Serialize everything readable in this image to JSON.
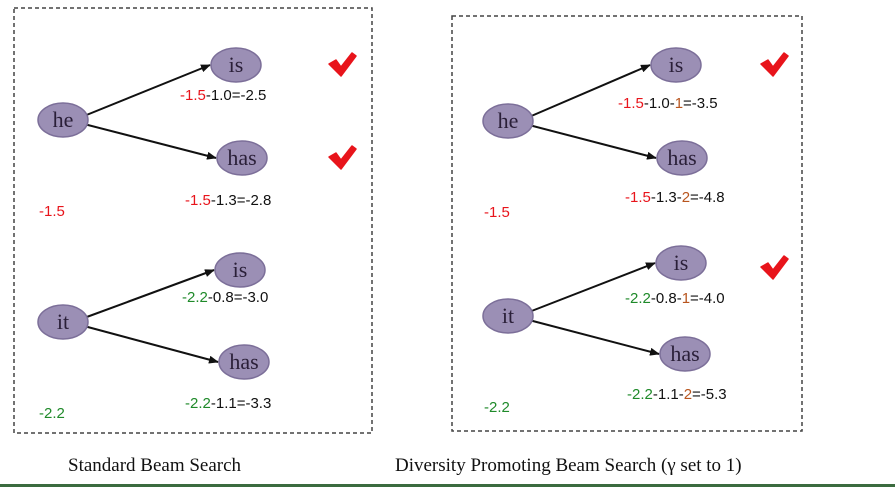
{
  "colors": {
    "node_fill": "#9b8fb5",
    "node_stroke": "#7c6f99",
    "red": "#e8141b",
    "green": "#1f8a2a",
    "brown": "#b8551e",
    "black": "#111111"
  },
  "panels": [
    {
      "caption": "Standard Beam Search",
      "groups": [
        {
          "root": {
            "label": "he",
            "score": [
              {
                "text": "-1.5",
                "color": "red"
              }
            ]
          },
          "children": [
            {
              "label": "is",
              "checked": true,
              "score": [
                {
                  "text": "-1.5",
                  "color": "red"
                },
                {
                  "text": "-1.0=-2.5",
                  "color": "black"
                }
              ]
            },
            {
              "label": "has",
              "checked": true,
              "score": [
                {
                  "text": "-1.5",
                  "color": "red"
                },
                {
                  "text": "-1.3=-2.8",
                  "color": "black"
                }
              ]
            }
          ]
        },
        {
          "root": {
            "label": "it",
            "score": [
              {
                "text": "-2.2",
                "color": "green"
              }
            ]
          },
          "children": [
            {
              "label": "is",
              "checked": false,
              "score": [
                {
                  "text": "-2.2",
                  "color": "green"
                },
                {
                  "text": "-0.8=-3.0",
                  "color": "black"
                }
              ]
            },
            {
              "label": "has",
              "checked": false,
              "score": [
                {
                  "text": "-2.2",
                  "color": "green"
                },
                {
                  "text": "-1.1=-3.3",
                  "color": "black"
                }
              ]
            }
          ]
        }
      ]
    },
    {
      "caption": "Diversity Promoting Beam Search (γ set to 1)",
      "groups": [
        {
          "root": {
            "label": "he",
            "score": [
              {
                "text": "-1.5",
                "color": "red"
              }
            ]
          },
          "children": [
            {
              "label": "is",
              "checked": true,
              "score": [
                {
                  "text": "-1.5",
                  "color": "red"
                },
                {
                  "text": "-1.0-",
                  "color": "black"
                },
                {
                  "text": "1",
                  "color": "brown"
                },
                {
                  "text": "=-3.5",
                  "color": "black"
                }
              ]
            },
            {
              "label": "has",
              "checked": false,
              "score": [
                {
                  "text": "-1.5",
                  "color": "red"
                },
                {
                  "text": "-1.3-",
                  "color": "black"
                },
                {
                  "text": "2",
                  "color": "brown"
                },
                {
                  "text": "=-4.8",
                  "color": "black"
                }
              ]
            }
          ]
        },
        {
          "root": {
            "label": "it",
            "score": [
              {
                "text": "-2.2",
                "color": "green"
              }
            ]
          },
          "children": [
            {
              "label": "is",
              "checked": true,
              "score": [
                {
                  "text": "-2.2",
                  "color": "green"
                },
                {
                  "text": "-0.8-",
                  "color": "black"
                },
                {
                  "text": "1",
                  "color": "brown"
                },
                {
                  "text": "=-4.0",
                  "color": "black"
                }
              ]
            },
            {
              "label": "has",
              "checked": false,
              "score": [
                {
                  "text": "-2.2",
                  "color": "green"
                },
                {
                  "text": "-1.1-",
                  "color": "black"
                },
                {
                  "text": "2",
                  "color": "brown"
                },
                {
                  "text": "=-5.3",
                  "color": "black"
                }
              ]
            }
          ]
        }
      ]
    }
  ]
}
